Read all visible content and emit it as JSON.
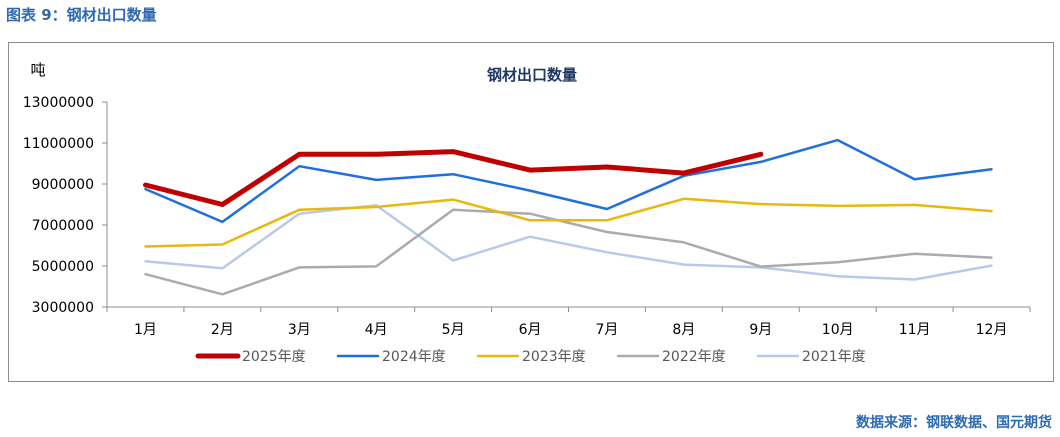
{
  "figure_caption": "图表 9：钢材出口数量",
  "source": "数据来源：钢联数据、国元期货",
  "chart_data": {
    "type": "line",
    "title": "钢材出口数量",
    "ylabel": "吨",
    "xlabel": "",
    "ylim": [
      3000000,
      13000000
    ],
    "yticks": [
      3000000,
      5000000,
      7000000,
      9000000,
      11000000,
      13000000
    ],
    "ytick_labels": [
      "3000000",
      "5000000",
      "7000000",
      "9000000",
      "11000000",
      "13000000"
    ],
    "categories": [
      "1月",
      "2月",
      "3月",
      "4月",
      "5月",
      "6月",
      "7月",
      "8月",
      "9月",
      "10月",
      "11月",
      "12月"
    ],
    "grid": false,
    "legend_position": "bottom",
    "series": [
      {
        "name": "2025年度",
        "color": "#c00000",
        "bold": true,
        "values": [
          8950000,
          8000000,
          10450000,
          10450000,
          10580000,
          9680000,
          9830000,
          9530000,
          10450000,
          null,
          null,
          null
        ]
      },
      {
        "name": "2024年度",
        "color": "#1f6fe0",
        "values": [
          8750000,
          7150000,
          9870000,
          9200000,
          9480000,
          8680000,
          7780000,
          9400000,
          10080000,
          11140000,
          9230000,
          9720000
        ]
      },
      {
        "name": "2023年度",
        "color": "#e7b80d",
        "values": [
          5950000,
          6050000,
          7740000,
          7880000,
          8240000,
          7230000,
          7230000,
          8280000,
          8020000,
          7930000,
          7980000,
          7680000
        ]
      },
      {
        "name": "2022年度",
        "color": "#ababab",
        "values": [
          4600000,
          3620000,
          4930000,
          4980000,
          7740000,
          7550000,
          6660000,
          6150000,
          4970000,
          5180000,
          5600000,
          5410000
        ]
      },
      {
        "name": "2021年度",
        "color": "#b8c9eb",
        "values": [
          5230000,
          4890000,
          7550000,
          7960000,
          5270000,
          6430000,
          5670000,
          5070000,
          4930000,
          4500000,
          4340000,
          5020000
        ]
      }
    ]
  }
}
